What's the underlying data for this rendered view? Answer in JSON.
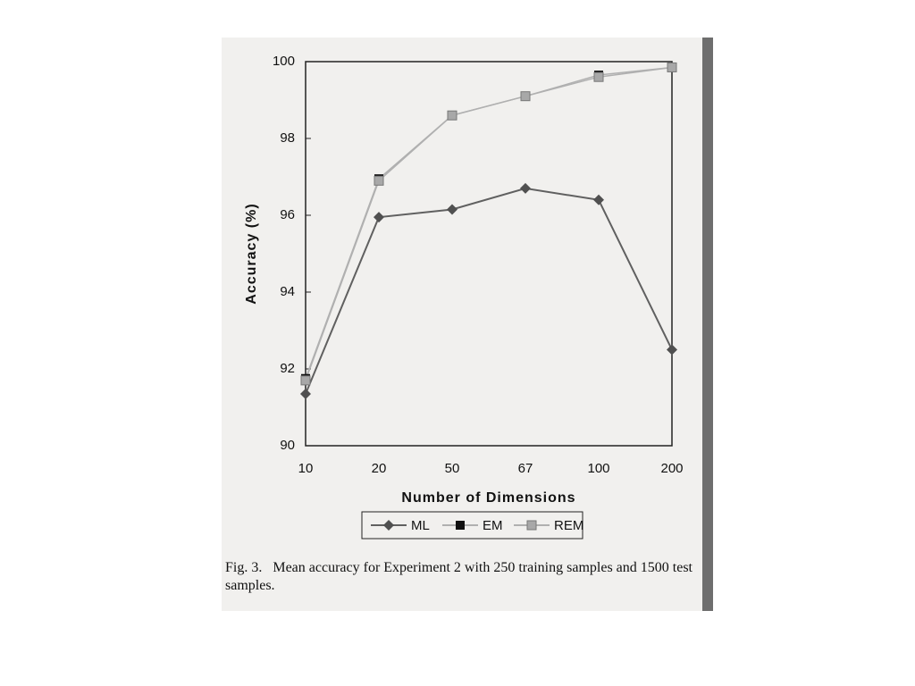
{
  "chart_data": {
    "type": "line",
    "xlabel": "Number of Dimensions",
    "ylabel": "Accuracy (%)",
    "caption": "Fig. 3.   Mean accuracy for Experiment 2 with 250 training samples and 1500 test samples.",
    "categories": [
      "10",
      "20",
      "50",
      "67",
      "100",
      "200"
    ],
    "series": [
      {
        "name": "ML",
        "color": "#505050",
        "values": [
          91.35,
          95.95,
          96.15,
          96.7,
          96.4,
          92.5
        ]
      },
      {
        "name": "EM",
        "color": "#111111",
        "values": [
          91.75,
          96.95,
          98.6,
          99.1,
          99.65,
          99.85
        ]
      },
      {
        "name": "REM",
        "color": "#a8a8a8",
        "values": [
          91.7,
          96.9,
          98.6,
          99.1,
          99.6,
          99.85
        ]
      }
    ],
    "ylim": [
      90,
      100
    ],
    "yticks": [
      90,
      92,
      94,
      96,
      98,
      100
    ],
    "grid": false
  }
}
